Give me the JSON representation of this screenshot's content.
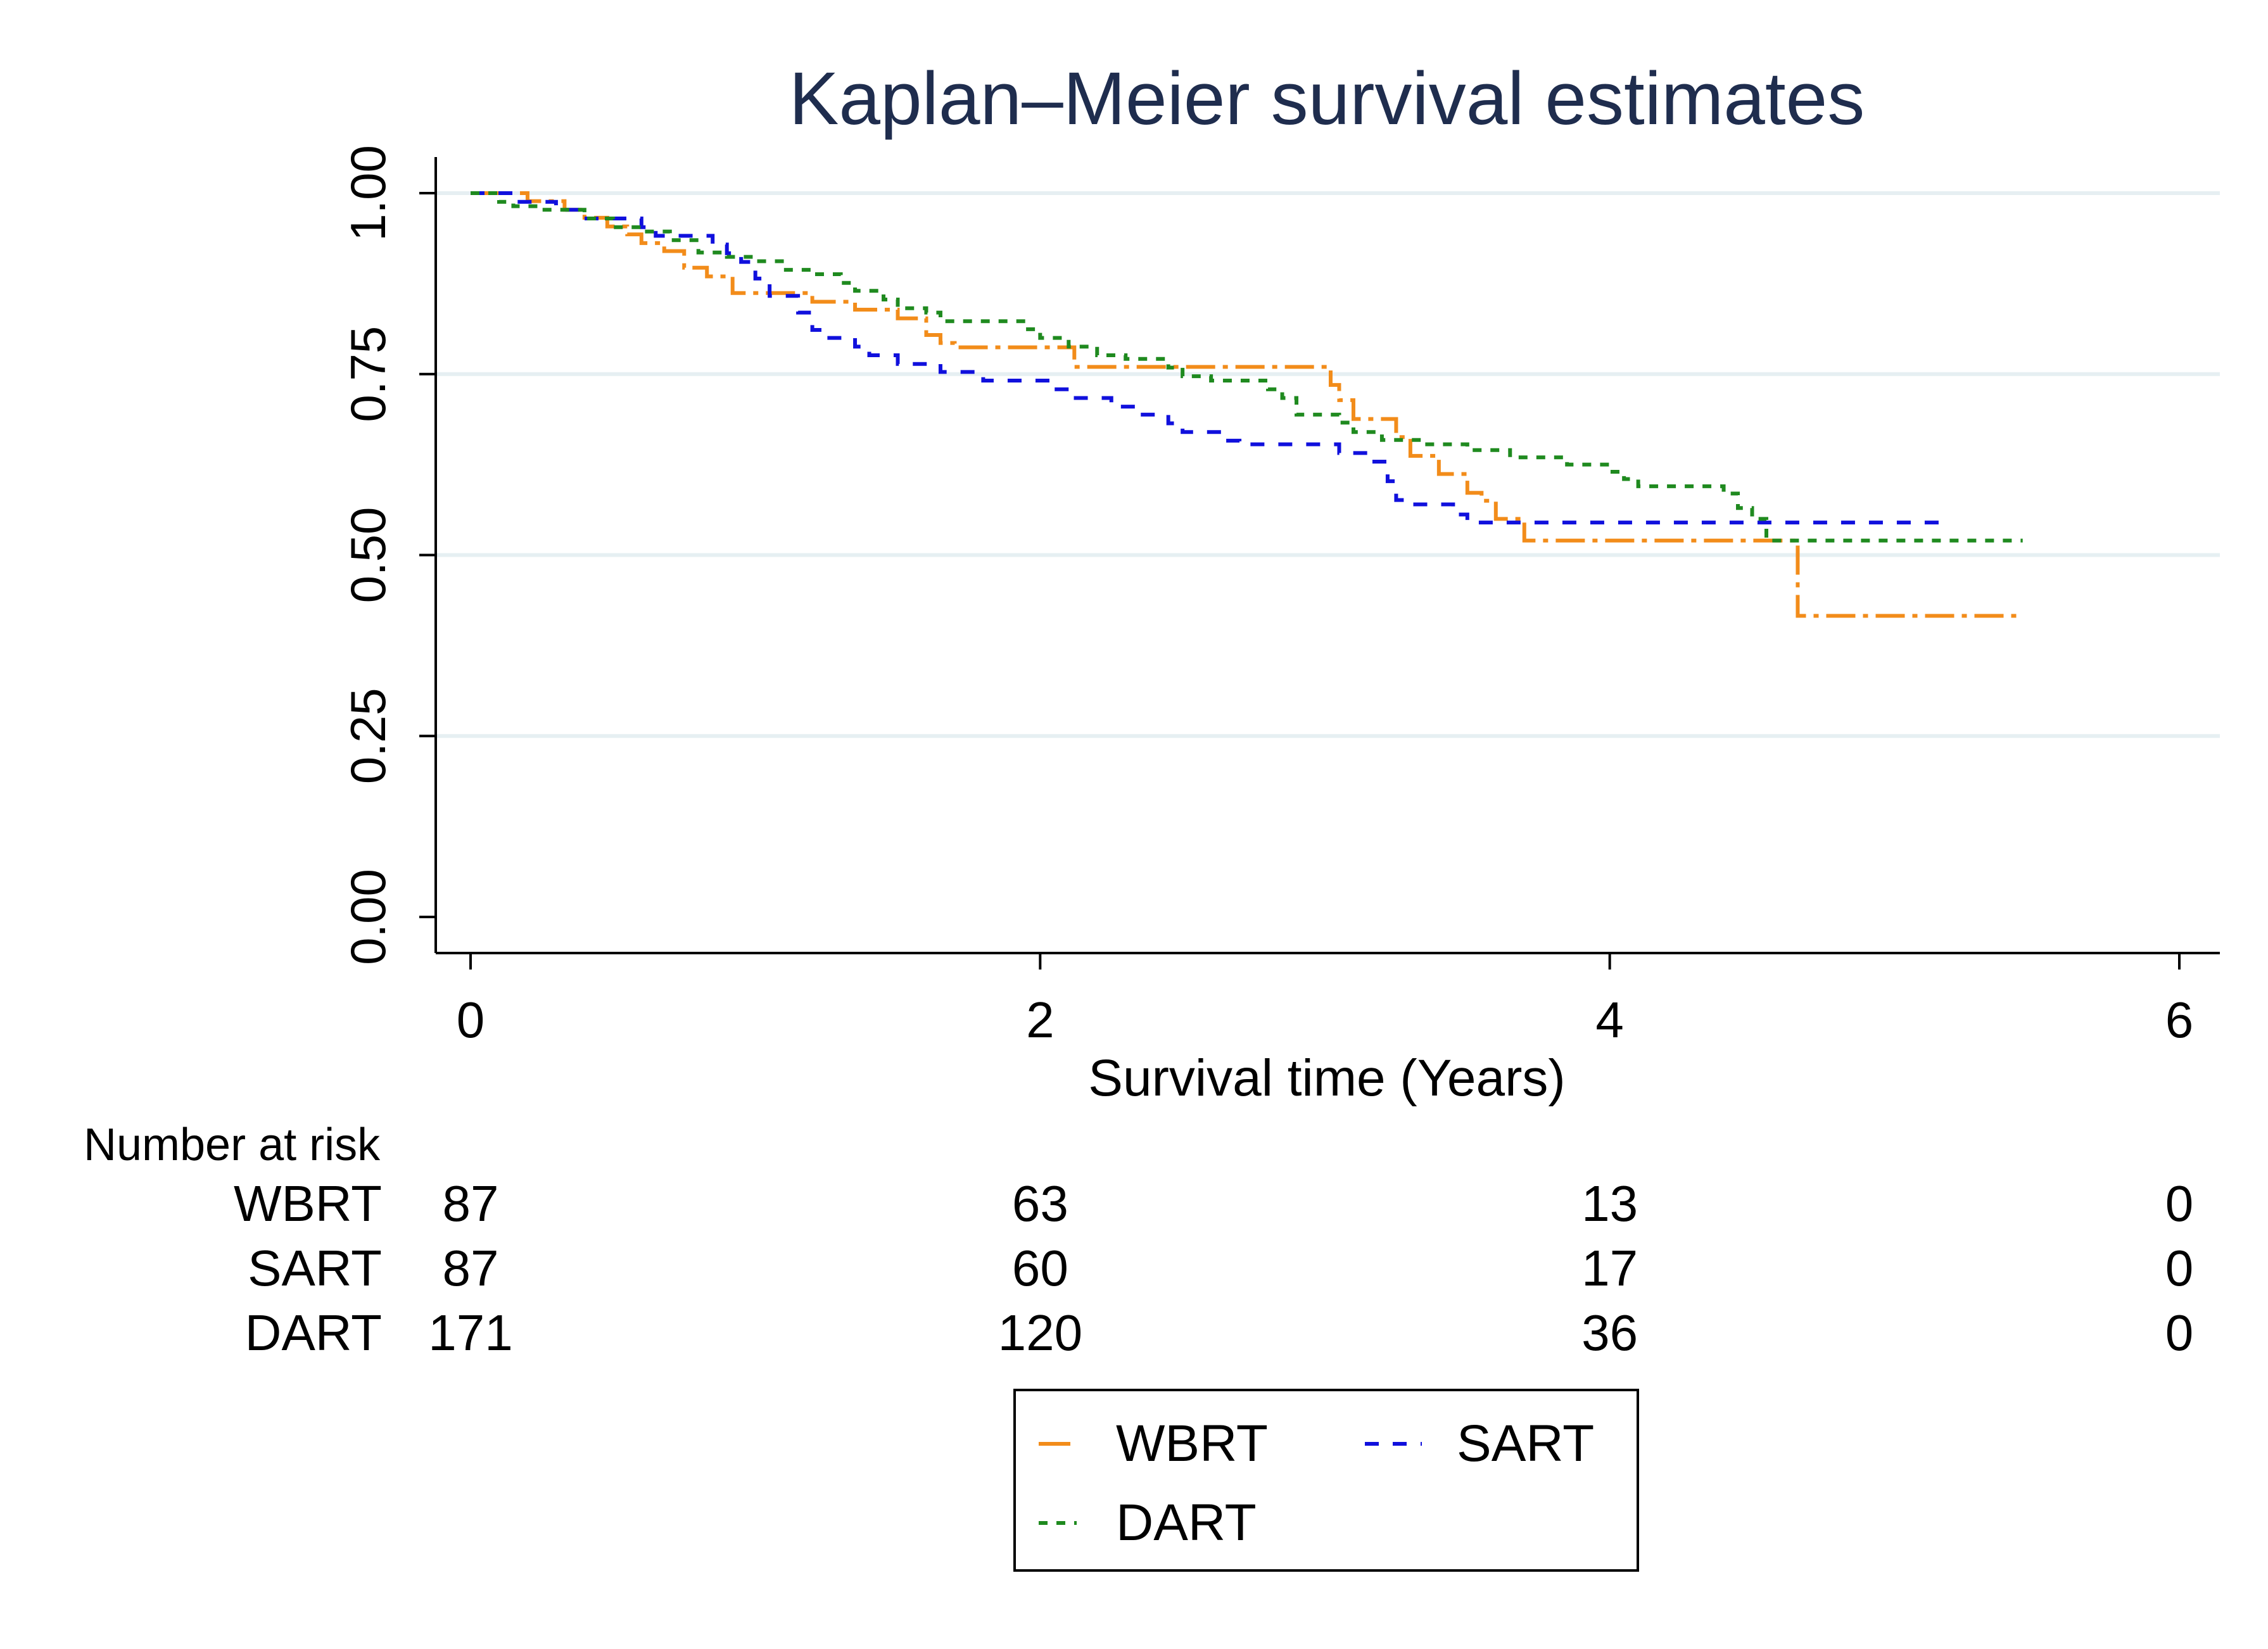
{
  "chart_data": {
    "type": "line",
    "title": "Kaplan–Meier survival estimates",
    "xlabel": "Survival time (Years)",
    "ylabel": "",
    "xlim": [
      0,
      6
    ],
    "ylim": [
      0,
      1
    ],
    "x_ticks": [
      "0",
      "2",
      "4",
      "6"
    ],
    "x_tick_values": [
      0,
      2,
      4,
      6
    ],
    "y_ticks": [
      "0.00",
      "0.25",
      "0.50",
      "0.75",
      "1.00"
    ],
    "y_tick_values": [
      0,
      0.25,
      0.5,
      0.75,
      1.0
    ],
    "grid": true,
    "colors": {
      "title": "#1f2d4e",
      "grid": "#e6eff2",
      "axis": "#000000"
    },
    "series": [
      {
        "name": "WBRT",
        "color": "#f28c1a",
        "dash": "long-dot",
        "points": [
          [
            0,
            1.0
          ],
          [
            0.2,
            0.989
          ],
          [
            0.33,
            0.977
          ],
          [
            0.4,
            0.966
          ],
          [
            0.48,
            0.954
          ],
          [
            0.55,
            0.943
          ],
          [
            0.6,
            0.931
          ],
          [
            0.68,
            0.92
          ],
          [
            0.75,
            0.897
          ],
          [
            0.83,
            0.885
          ],
          [
            0.92,
            0.862
          ],
          [
            1.1,
            0.862
          ],
          [
            1.2,
            0.85
          ],
          [
            1.35,
            0.839
          ],
          [
            1.5,
            0.827
          ],
          [
            1.6,
            0.804
          ],
          [
            1.65,
            0.793
          ],
          [
            1.7,
            0.787
          ],
          [
            2.1,
            0.787
          ],
          [
            2.12,
            0.76
          ],
          [
            3.0,
            0.76
          ],
          [
            3.02,
            0.735
          ],
          [
            3.05,
            0.714
          ],
          [
            3.1,
            0.688
          ],
          [
            3.25,
            0.663
          ],
          [
            3.3,
            0.637
          ],
          [
            3.4,
            0.612
          ],
          [
            3.5,
            0.586
          ],
          [
            3.55,
            0.575
          ],
          [
            3.6,
            0.55
          ],
          [
            3.7,
            0.52
          ],
          [
            4.65,
            0.52
          ],
          [
            4.66,
            0.416
          ],
          [
            5.45,
            0.416
          ]
        ]
      },
      {
        "name": "SART",
        "color": "#1010dd",
        "dash": "short",
        "points": [
          [
            0,
            1.0
          ],
          [
            0.15,
            0.988
          ],
          [
            0.3,
            0.977
          ],
          [
            0.4,
            0.965
          ],
          [
            0.6,
            0.953
          ],
          [
            0.65,
            0.941
          ],
          [
            0.85,
            0.929
          ],
          [
            0.9,
            0.917
          ],
          [
            0.95,
            0.905
          ],
          [
            1.0,
            0.882
          ],
          [
            1.05,
            0.858
          ],
          [
            1.15,
            0.835
          ],
          [
            1.2,
            0.811
          ],
          [
            1.25,
            0.8
          ],
          [
            1.35,
            0.788
          ],
          [
            1.4,
            0.776
          ],
          [
            1.5,
            0.764
          ],
          [
            1.65,
            0.753
          ],
          [
            1.8,
            0.741
          ],
          [
            2.05,
            0.729
          ],
          [
            2.1,
            0.717
          ],
          [
            2.25,
            0.705
          ],
          [
            2.35,
            0.694
          ],
          [
            2.45,
            0.682
          ],
          [
            2.5,
            0.67
          ],
          [
            2.65,
            0.658
          ],
          [
            2.7,
            0.653
          ],
          [
            3.0,
            0.653
          ],
          [
            3.05,
            0.641
          ],
          [
            3.15,
            0.629
          ],
          [
            3.22,
            0.602
          ],
          [
            3.25,
            0.576
          ],
          [
            3.3,
            0.57
          ],
          [
            3.45,
            0.556
          ],
          [
            3.5,
            0.545
          ],
          [
            5.2,
            0.545
          ]
        ]
      },
      {
        "name": "DART",
        "color": "#1f8a1f",
        "dash": "medium",
        "points": [
          [
            0,
            1.0
          ],
          [
            0.1,
            0.988
          ],
          [
            0.15,
            0.982
          ],
          [
            0.25,
            0.977
          ],
          [
            0.4,
            0.965
          ],
          [
            0.5,
            0.953
          ],
          [
            0.6,
            0.947
          ],
          [
            0.7,
            0.935
          ],
          [
            0.8,
            0.918
          ],
          [
            0.9,
            0.912
          ],
          [
            1.0,
            0.906
          ],
          [
            1.1,
            0.894
          ],
          [
            1.2,
            0.888
          ],
          [
            1.3,
            0.876
          ],
          [
            1.35,
            0.865
          ],
          [
            1.45,
            0.853
          ],
          [
            1.5,
            0.841
          ],
          [
            1.6,
            0.835
          ],
          [
            1.65,
            0.823
          ],
          [
            1.95,
            0.812
          ],
          [
            2.0,
            0.8
          ],
          [
            2.1,
            0.788
          ],
          [
            2.2,
            0.776
          ],
          [
            2.3,
            0.771
          ],
          [
            2.45,
            0.759
          ],
          [
            2.5,
            0.747
          ],
          [
            2.6,
            0.741
          ],
          [
            2.8,
            0.729
          ],
          [
            2.85,
            0.717
          ],
          [
            2.9,
            0.694
          ],
          [
            3.05,
            0.683
          ],
          [
            3.1,
            0.67
          ],
          [
            3.2,
            0.659
          ],
          [
            3.35,
            0.653
          ],
          [
            3.5,
            0.645
          ],
          [
            3.65,
            0.635
          ],
          [
            3.85,
            0.625
          ],
          [
            4.0,
            0.615
          ],
          [
            4.05,
            0.605
          ],
          [
            4.1,
            0.595
          ],
          [
            4.4,
            0.585
          ],
          [
            4.45,
            0.565
          ],
          [
            4.5,
            0.55
          ],
          [
            4.55,
            0.52
          ],
          [
            5.45,
            0.52
          ]
        ]
      }
    ],
    "risk_table": {
      "title": "Number at risk",
      "times": [
        0,
        2,
        4,
        6
      ],
      "rows": [
        {
          "label": "WBRT",
          "values": [
            "87",
            "63",
            "13",
            "0"
          ]
        },
        {
          "label": "SART",
          "values": [
            "87",
            "60",
            "17",
            "0"
          ]
        },
        {
          "label": "DART",
          "values": [
            "171",
            "120",
            "36",
            "0"
          ]
        }
      ]
    },
    "legend": {
      "placement": "bottom-center",
      "entries": [
        "WBRT",
        "SART",
        "DART"
      ]
    }
  }
}
